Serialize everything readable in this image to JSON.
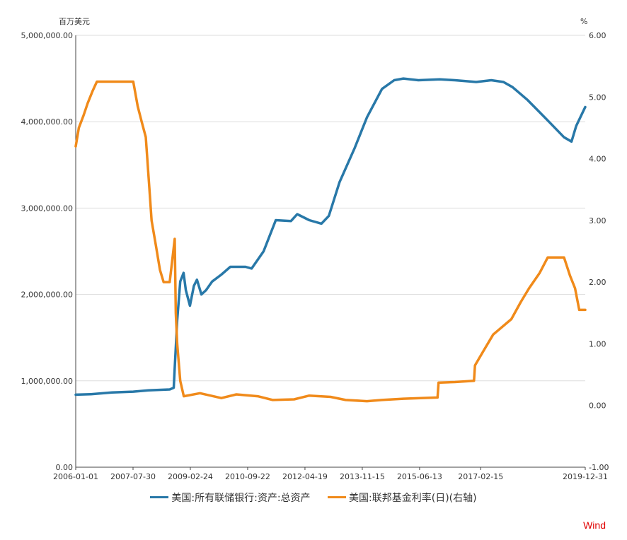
{
  "chart_data": {
    "type": "line",
    "title": "",
    "y_left_unit": "百万美元",
    "y_right_unit": "%",
    "ylim_left": [
      0,
      5000000
    ],
    "ylim_right": [
      -1.0,
      6.0
    ],
    "y_left_ticks": [
      "0.00",
      "1,000,000.00",
      "2,000,000.00",
      "3,000,000.00",
      "4,000,000.00",
      "5,000,000.00"
    ],
    "y_right_ticks": [
      "-1.00",
      "0.00",
      "1.00",
      "2.00",
      "3.00",
      "4.00",
      "5.00",
      "6.00"
    ],
    "x_range": [
      "2006-01-01",
      "2019-12-31"
    ],
    "x_ticks": [
      "2006-01-01",
      "2007-07-30",
      "2009-02-24",
      "2010-09-22",
      "2012-04-19",
      "2013-11-15",
      "2015-06-13",
      "2017-02-15",
      "2019-12-31"
    ],
    "grid": true,
    "legend_position": "bottom",
    "series": [
      {
        "name": "美国:所有联储银行:资产:总资产",
        "axis": "left",
        "color": "#2878a8",
        "points": [
          [
            "2006-01-01",
            840000
          ],
          [
            "2006-06-01",
            845000
          ],
          [
            "2007-01-01",
            865000
          ],
          [
            "2007-08-01",
            875000
          ],
          [
            "2008-01-01",
            890000
          ],
          [
            "2008-08-01",
            900000
          ],
          [
            "2008-09-10",
            920000
          ],
          [
            "2008-09-20",
            1150000
          ],
          [
            "2008-10-15",
            1700000
          ],
          [
            "2008-11-15",
            2150000
          ],
          [
            "2008-12-18",
            2250000
          ],
          [
            "2009-01-10",
            2050000
          ],
          [
            "2009-02-20",
            1870000
          ],
          [
            "2009-04-01",
            2100000
          ],
          [
            "2009-05-01",
            2170000
          ],
          [
            "2009-06-15",
            2000000
          ],
          [
            "2009-08-01",
            2050000
          ],
          [
            "2009-10-01",
            2150000
          ],
          [
            "2010-01-01",
            2230000
          ],
          [
            "2010-04-01",
            2320000
          ],
          [
            "2010-09-01",
            2320000
          ],
          [
            "2010-11-01",
            2300000
          ],
          [
            "2011-03-01",
            2500000
          ],
          [
            "2011-07-01",
            2860000
          ],
          [
            "2011-12-01",
            2850000
          ],
          [
            "2012-02-01",
            2930000
          ],
          [
            "2012-06-01",
            2860000
          ],
          [
            "2012-10-01",
            2820000
          ],
          [
            "2012-12-15",
            2910000
          ],
          [
            "2013-04-01",
            3300000
          ],
          [
            "2013-09-01",
            3700000
          ],
          [
            "2014-01-01",
            4050000
          ],
          [
            "2014-06-01",
            4380000
          ],
          [
            "2014-10-01",
            4480000
          ],
          [
            "2015-01-01",
            4500000
          ],
          [
            "2015-06-01",
            4480000
          ],
          [
            "2016-01-01",
            4490000
          ],
          [
            "2016-06-01",
            4480000
          ],
          [
            "2017-01-01",
            4460000
          ],
          [
            "2017-06-01",
            4480000
          ],
          [
            "2017-10-01",
            4460000
          ],
          [
            "2018-01-01",
            4400000
          ],
          [
            "2018-06-01",
            4250000
          ],
          [
            "2019-01-01",
            4000000
          ],
          [
            "2019-06-01",
            3820000
          ],
          [
            "2019-08-15",
            3770000
          ],
          [
            "2019-10-01",
            3950000
          ],
          [
            "2019-12-31",
            4170000
          ]
        ]
      },
      {
        "name": "美国:联邦基金利率(日)(右轴)",
        "axis": "right",
        "color": "#f08a1a",
        "points": [
          [
            "2006-01-01",
            4.2
          ],
          [
            "2006-02-01",
            4.5
          ],
          [
            "2006-03-20",
            4.7
          ],
          [
            "2006-05-01",
            4.9
          ],
          [
            "2006-06-20",
            5.1
          ],
          [
            "2006-08-01",
            5.25
          ],
          [
            "2007-01-01",
            5.25
          ],
          [
            "2007-08-01",
            5.25
          ],
          [
            "2007-09-15",
            4.85
          ],
          [
            "2007-10-25",
            4.6
          ],
          [
            "2007-12-05",
            4.35
          ],
          [
            "2008-01-15",
            3.4
          ],
          [
            "2008-02-01",
            3.0
          ],
          [
            "2008-03-15",
            2.6
          ],
          [
            "2008-04-25",
            2.2
          ],
          [
            "2008-06-01",
            2.0
          ],
          [
            "2008-08-01",
            2.0
          ],
          [
            "2008-09-20",
            2.7
          ],
          [
            "2008-10-01",
            1.5
          ],
          [
            "2008-10-15",
            1.0
          ],
          [
            "2008-11-15",
            0.4
          ],
          [
            "2008-12-20",
            0.15
          ],
          [
            "2009-06-01",
            0.2
          ],
          [
            "2010-01-01",
            0.12
          ],
          [
            "2010-06-01",
            0.18
          ],
          [
            "2011-01-01",
            0.15
          ],
          [
            "2011-06-01",
            0.09
          ],
          [
            "2012-01-01",
            0.1
          ],
          [
            "2012-06-01",
            0.16
          ],
          [
            "2013-01-01",
            0.14
          ],
          [
            "2013-06-01",
            0.09
          ],
          [
            "2014-01-01",
            0.07
          ],
          [
            "2014-06-01",
            0.09
          ],
          [
            "2015-01-01",
            0.11
          ],
          [
            "2015-12-10",
            0.13
          ],
          [
            "2015-12-20",
            0.37
          ],
          [
            "2016-06-01",
            0.38
          ],
          [
            "2016-12-10",
            0.4
          ],
          [
            "2016-12-20",
            0.65
          ],
          [
            "2017-03-20",
            0.9
          ],
          [
            "2017-06-20",
            1.15
          ],
          [
            "2017-12-20",
            1.4
          ],
          [
            "2018-03-25",
            1.68
          ],
          [
            "2018-06-15",
            1.9
          ],
          [
            "2018-09-30",
            2.15
          ],
          [
            "2018-12-20",
            2.4
          ],
          [
            "2019-06-01",
            2.4
          ],
          [
            "2019-08-01",
            2.1
          ],
          [
            "2019-09-20",
            1.9
          ],
          [
            "2019-11-01",
            1.55
          ],
          [
            "2019-12-31",
            1.55
          ]
        ]
      }
    ]
  },
  "watermark": "Wind"
}
